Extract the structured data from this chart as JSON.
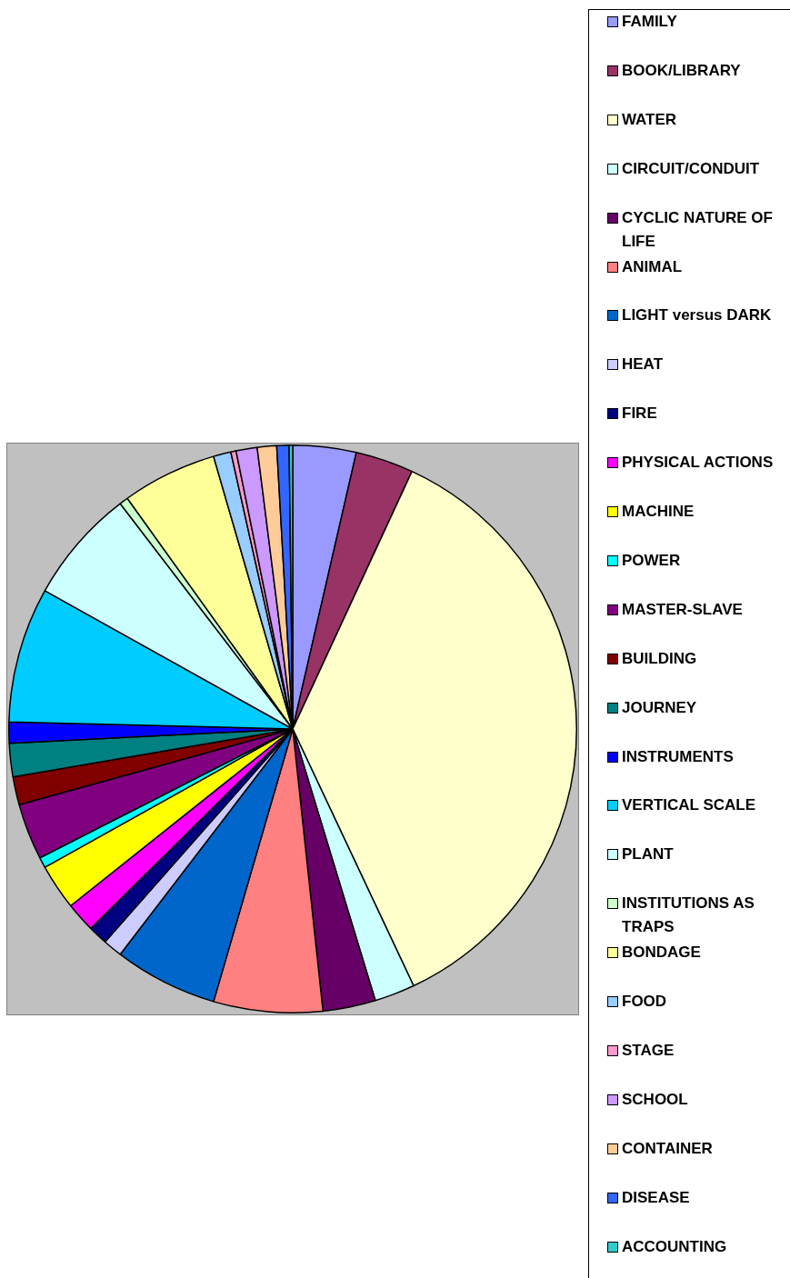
{
  "chart_data": {
    "type": "pie",
    "legend": "right",
    "categories": [
      "FAMILY",
      "BOOK/LIBRARY",
      "WATER",
      "CIRCUIT/CONDUIT",
      "CYCLIC NATURE OF LIFE",
      "ANIMAL",
      "LIGHT versus DARK",
      "HEAT",
      "FIRE",
      "PHYSICAL ACTIONS",
      "MACHINE",
      "POWER",
      "MASTER-SLAVE",
      "BUILDING",
      "JOURNEY",
      "INSTRUMENTS",
      "VERTICAL SCALE",
      "PLANT",
      "INSTITUTIONS AS TRAPS",
      "BONDAGE",
      "FOOD",
      "STAGE",
      "SCHOOL",
      "CONTAINER",
      "DISEASE",
      "ACCOUNTING"
    ],
    "values": [
      3.6,
      3.3,
      36.1,
      2.3,
      3.0,
      6.2,
      5.9,
      1.1,
      1.1,
      1.7,
      2.6,
      0.6,
      3.2,
      1.6,
      1.9,
      1.2,
      7.7,
      6.5,
      0.5,
      5.4,
      1.0,
      0.3,
      1.2,
      1.1,
      0.7,
      0.2
    ],
    "colors": [
      "#9999ff",
      "#993366",
      "#ffffcc",
      "#ccffff",
      "#660066",
      "#ff8080",
      "#0066cc",
      "#ccccff",
      "#000080",
      "#ff00ff",
      "#ffff00",
      "#00ffff",
      "#800080",
      "#800000",
      "#008080",
      "#0000ff",
      "#00ccff",
      "#ccffff",
      "#ccffcc",
      "#ffff99",
      "#99ccff",
      "#ff99cc",
      "#cc99ff",
      "#ffcc99",
      "#3366ff",
      "#33cccc"
    ]
  }
}
